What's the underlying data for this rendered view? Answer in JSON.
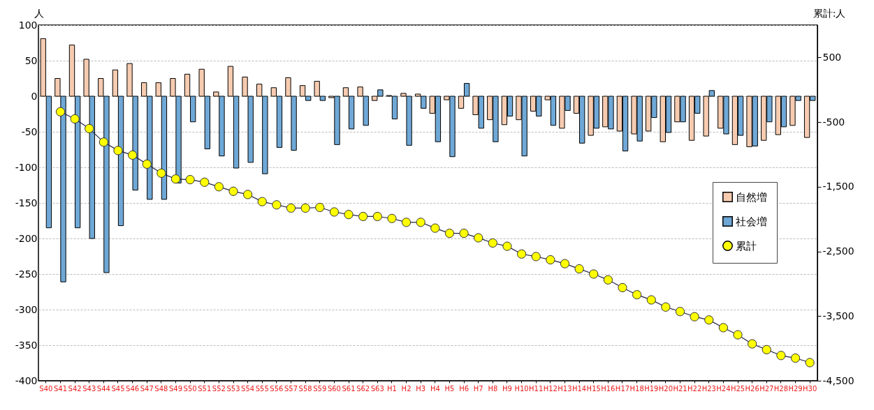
{
  "chart_data": {
    "type": "bar",
    "ylabel": "人",
    "y2label": "累計:人",
    "categories": [
      "S40",
      "S41",
      "S42",
      "S43",
      "S44",
      "S45",
      "S46",
      "S47",
      "S48",
      "S49",
      "S50",
      "S51",
      "S52",
      "S53",
      "S54",
      "S55",
      "S56",
      "S57",
      "S58",
      "S59",
      "S60",
      "S61",
      "S62",
      "S63",
      "H1",
      "H2",
      "H3",
      "H4",
      "H5",
      "H6",
      "H7",
      "H8",
      "H9",
      "H10",
      "H11",
      "H12",
      "H13",
      "H14",
      "H15",
      "H16",
      "H17",
      "H18",
      "H19",
      "H20",
      "H21",
      "H22",
      "H23",
      "H24",
      "H25",
      "H26",
      "H27",
      "H28",
      "H29",
      "H30"
    ],
    "series": [
      {
        "name": "自然増",
        "color": "#f6cbb0",
        "values": [
          81,
          25,
          72,
          52,
          25,
          37,
          46,
          19,
          19,
          25,
          31,
          38,
          6,
          42,
          27,
          17,
          12,
          26,
          15,
          21,
          -2,
          12,
          13,
          -6,
          1,
          4,
          3,
          -24,
          -5,
          -17,
          -26,
          -33,
          -40,
          -33,
          -21,
          -5,
          -45,
          -24,
          -55,
          -43,
          -49,
          -53,
          -49,
          -64,
          -36,
          -62,
          -56,
          -45,
          -68,
          -71,
          -62,
          -54,
          -41,
          -58
        ]
      },
      {
        "name": "社会増",
        "color": "#6fa8d6",
        "values": [
          -185,
          -261,
          -185,
          -200,
          -248,
          -182,
          -132,
          -145,
          -145,
          -122,
          -36,
          -74,
          -84,
          -101,
          -93,
          -109,
          -72,
          -76,
          -6,
          -6,
          -68,
          -46,
          -41,
          9,
          -32,
          -69,
          -17,
          -64,
          -85,
          18,
          -45,
          -64,
          -28,
          -84,
          -28,
          -41,
          -20,
          -66,
          -45,
          -46,
          -77,
          -63,
          -30,
          -51,
          -36,
          -24,
          8,
          -53,
          -55,
          -70,
          -36,
          -43,
          -6,
          -6
        ]
      },
      {
        "name": "累計",
        "type": "line",
        "axis": "y2",
        "color": "#ffff00",
        "values": [
          null,
          -340,
          -450,
          -600,
          -810,
          -940,
          -1010,
          -1150,
          -1290,
          -1380,
          -1390,
          -1430,
          -1500,
          -1570,
          -1620,
          -1730,
          -1780,
          -1830,
          -1830,
          -1820,
          -1890,
          -1930,
          -1960,
          -1960,
          -1990,
          -2050,
          -2050,
          -2140,
          -2220,
          -2220,
          -2290,
          -2370,
          -2420,
          -2540,
          -2580,
          -2630,
          -2690,
          -2770,
          -2850,
          -2940,
          -3060,
          -3170,
          -3250,
          -3360,
          -3430,
          -3510,
          -3560,
          -3680,
          -3790,
          -3930,
          -4020,
          -4110,
          -4150,
          -4220
        ]
      }
    ],
    "ylim": [
      -400,
      100
    ],
    "yticks": [
      -400,
      -350,
      -300,
      -250,
      -200,
      -150,
      -100,
      -50,
      0,
      50,
      100
    ],
    "y2lim": [
      -4500,
      1000
    ],
    "y2ticks": [
      {
        "value": -4500,
        "label": "-4,500"
      },
      {
        "value": -3500,
        "label": "-3,500"
      },
      {
        "value": -2500,
        "label": "-2,500"
      },
      {
        "value": -1500,
        "label": "-1,500"
      },
      {
        "value": -500,
        "label": "-500"
      },
      {
        "value": 500,
        "label": "500"
      }
    ],
    "grid": "y",
    "legend": "right",
    "marker": "circle"
  }
}
